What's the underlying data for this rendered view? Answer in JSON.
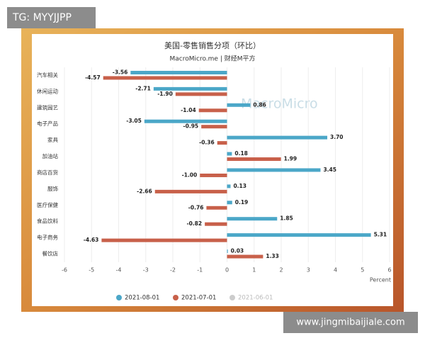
{
  "chart_data": {
    "type": "hbar",
    "title": "美国-零售销售分项（环比）",
    "subtitle": "MacroMicro.me | 财经M平方",
    "watermark": "MacroMicro",
    "categories": [
      "汽车相关",
      "休闲运动",
      "建筑园艺",
      "电子产品",
      "家具",
      "加油站",
      "商店百货",
      "服饰",
      "医疗保健",
      "食品饮料",
      "电子商务",
      "餐饮店"
    ],
    "series": [
      {
        "name": "2021-08-01",
        "color": "#4ba7c8",
        "values": [
          -3.56,
          -2.71,
          0.86,
          -3.05,
          3.7,
          0.18,
          3.45,
          0.13,
          0.19,
          1.85,
          5.31,
          0.03
        ],
        "value_labels": [
          "-3.56",
          "-2.71",
          "0.86",
          "-3.05",
          "3.70",
          "0.18",
          "3.45",
          "0.13",
          "0.19",
          "1.85",
          "5.31",
          "0.03"
        ]
      },
      {
        "name": "2021-07-01",
        "color": "#c8604a",
        "values": [
          -4.57,
          -1.9,
          -1.04,
          -0.95,
          -0.36,
          1.99,
          -1.0,
          -2.66,
          -0.76,
          -0.82,
          -4.63,
          1.33
        ],
        "value_labels": [
          "-4.57",
          "-1.90",
          "-1.04",
          "-0.95",
          "-0.36",
          "1.99",
          "-1.00",
          "-2.66",
          "-0.76",
          "-0.82",
          "-4.63",
          "1.33"
        ]
      },
      {
        "name": "2021-06-01",
        "color": "#cccccc",
        "hidden": true,
        "values": [
          null,
          null,
          null,
          null,
          null,
          null,
          null,
          null,
          null,
          null,
          null,
          null
        ]
      }
    ],
    "x_label": "Percent",
    "xlim": [
      -6,
      6
    ],
    "xticks": [
      -6,
      -5,
      -4,
      -3,
      -2,
      -1,
      0,
      1,
      2,
      3,
      4,
      5,
      6
    ],
    "grid": true,
    "legend": "bottom"
  },
  "overlay": {
    "top_left": "TG: MYYJJPP",
    "bottom_right": "www.jingmibaijiale.com"
  }
}
